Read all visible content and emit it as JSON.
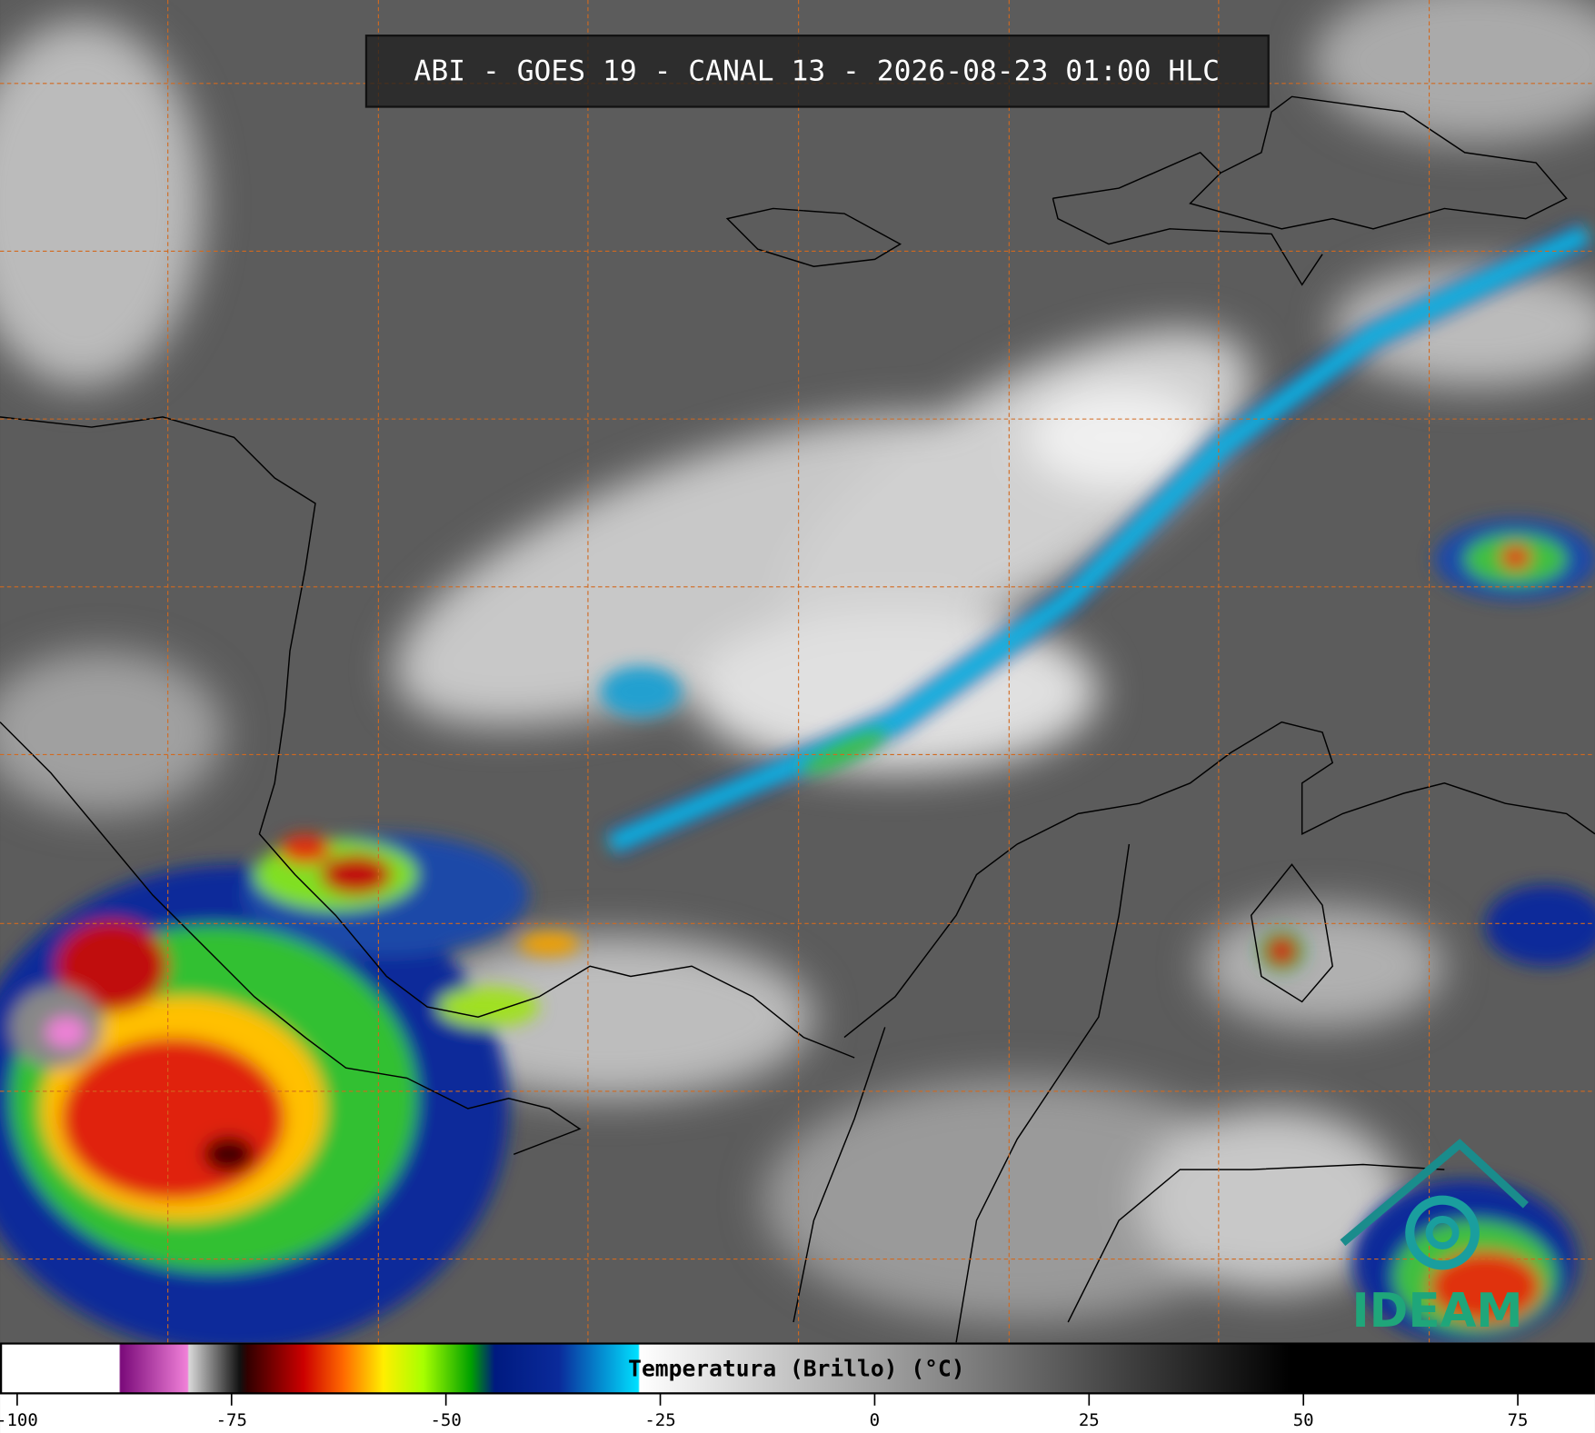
{
  "title": "ABI - GOES 19 - CANAL 13 - 2026-08-23 01:00 HLC",
  "colorbar": {
    "label": "Temperatura (Brillo) (°C)",
    "lim": [
      -102,
      84
    ],
    "ticks": [
      -100,
      -75,
      -50,
      -25,
      0,
      25,
      50,
      75
    ]
  },
  "logo": {
    "text": "IDEAM"
  }
}
